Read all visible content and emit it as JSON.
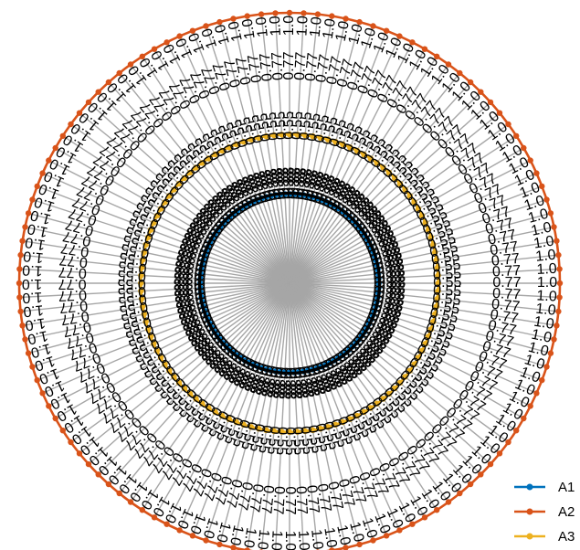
{
  "chart_data": {
    "type": "radar",
    "n_axes": 120,
    "series": [
      {
        "name": "A1",
        "color": "#0072BD",
        "value": 0.33,
        "label": "0.33"
      },
      {
        "name": "A2",
        "color": "#D95319",
        "value": 1.0,
        "label": "1.0"
      },
      {
        "name": "A3",
        "color": "#EDB120",
        "value": 0.55,
        "label": "0.55"
      }
    ],
    "extra_label_rings": [
      {
        "value": 0.33,
        "label": "0.33"
      },
      {
        "value": 0.77,
        "label": "0.77"
      }
    ],
    "grid": false,
    "legend_position": "bottom-right"
  }
}
